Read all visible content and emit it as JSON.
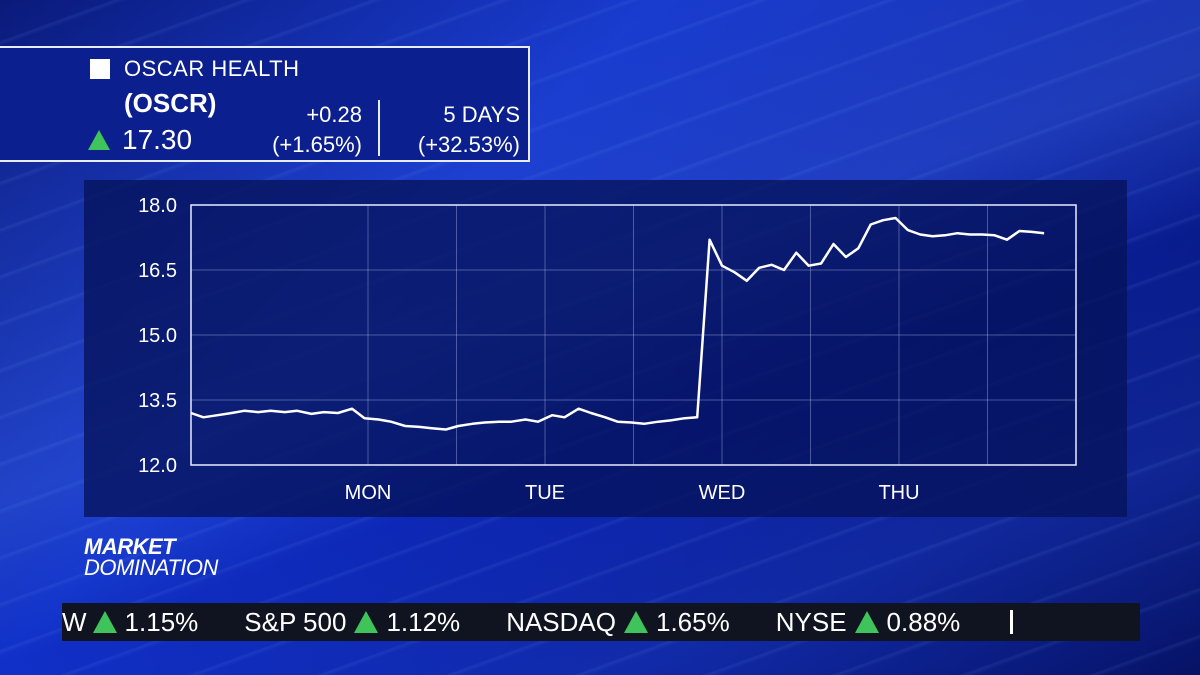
{
  "header": {
    "company": "OSCAR HEALTH",
    "symbol": "(OSCR)",
    "price": "17.30",
    "change": "+0.28",
    "change_pct": "(+1.65%)",
    "period_label": "5 DAYS",
    "period_pct": "(+32.53%)",
    "up_color": "#3ec45a"
  },
  "brand": {
    "line1": "MARKET",
    "line2": "DOMINATION"
  },
  "ticker": [
    {
      "name": "W",
      "pct": "1.15%"
    },
    {
      "name": "S&P 500",
      "pct": "1.12%"
    },
    {
      "name": "NASDAQ",
      "pct": "1.65%"
    },
    {
      "name": "NYSE",
      "pct": "0.88%"
    }
  ],
  "chart_data": {
    "type": "line",
    "title": "",
    "xlabel": "",
    "ylabel": "",
    "ylim": [
      12.0,
      18.0
    ],
    "yticks": [
      "18.0",
      "16.5",
      "15.0",
      "13.5",
      "12.0"
    ],
    "ytick_values": [
      18.0,
      16.5,
      15.0,
      13.5,
      12.0
    ],
    "xticks": [
      "MON",
      "TUE",
      "WED",
      "THU"
    ],
    "xtick_positions": [
      10,
      20,
      30,
      40
    ],
    "xlim": [
      0,
      50
    ],
    "grid": true,
    "line_color": "#ffffff",
    "series": [
      {
        "values": [
          [
            0,
            13.2
          ],
          [
            0.7,
            13.1
          ],
          [
            1.5,
            13.15
          ],
          [
            2.3,
            13.2
          ],
          [
            3,
            13.25
          ],
          [
            3.8,
            13.22
          ],
          [
            4.5,
            13.25
          ],
          [
            5.3,
            13.22
          ],
          [
            6,
            13.25
          ],
          [
            6.8,
            13.18
          ],
          [
            7.5,
            13.22
          ],
          [
            8.3,
            13.2
          ],
          [
            9.1,
            13.3
          ],
          [
            9.8,
            13.08
          ],
          [
            10.6,
            13.05
          ],
          [
            11.3,
            13.0
          ],
          [
            12.1,
            12.9
          ],
          [
            12.9,
            12.88
          ],
          [
            13.6,
            12.85
          ],
          [
            14.4,
            12.82
          ],
          [
            15.1,
            12.9
          ],
          [
            15.9,
            12.95
          ],
          [
            16.6,
            12.98
          ],
          [
            17.4,
            13.0
          ],
          [
            18.1,
            13.0
          ],
          [
            18.9,
            13.05
          ],
          [
            19.6,
            13.0
          ],
          [
            20.4,
            13.15
          ],
          [
            21.1,
            13.1
          ],
          [
            21.9,
            13.3
          ],
          [
            22.6,
            13.2
          ],
          [
            23.4,
            13.1
          ],
          [
            24.1,
            13.0
          ],
          [
            24.9,
            12.98
          ],
          [
            25.6,
            12.95
          ],
          [
            26.4,
            13.0
          ],
          [
            27.1,
            13.03
          ],
          [
            27.9,
            13.08
          ],
          [
            28.6,
            13.1
          ],
          [
            29.3,
            17.2
          ],
          [
            30.0,
            16.6
          ],
          [
            30.7,
            16.45
          ],
          [
            31.4,
            16.25
          ],
          [
            32.1,
            16.55
          ],
          [
            32.8,
            16.62
          ],
          [
            33.5,
            16.5
          ],
          [
            34.2,
            16.9
          ],
          [
            34.9,
            16.6
          ],
          [
            35.6,
            16.65
          ],
          [
            36.3,
            17.1
          ],
          [
            37.0,
            16.8
          ],
          [
            37.7,
            17.0
          ],
          [
            38.4,
            17.55
          ],
          [
            39.1,
            17.65
          ],
          [
            39.8,
            17.7
          ],
          [
            40.5,
            17.42
          ],
          [
            41.2,
            17.32
          ],
          [
            41.9,
            17.28
          ],
          [
            42.6,
            17.3
          ],
          [
            43.3,
            17.35
          ],
          [
            44.0,
            17.32
          ],
          [
            44.7,
            17.32
          ],
          [
            45.4,
            17.3
          ],
          [
            46.1,
            17.2
          ],
          [
            46.8,
            17.4
          ],
          [
            47.5,
            17.38
          ],
          [
            48.2,
            17.35
          ]
        ]
      }
    ]
  }
}
